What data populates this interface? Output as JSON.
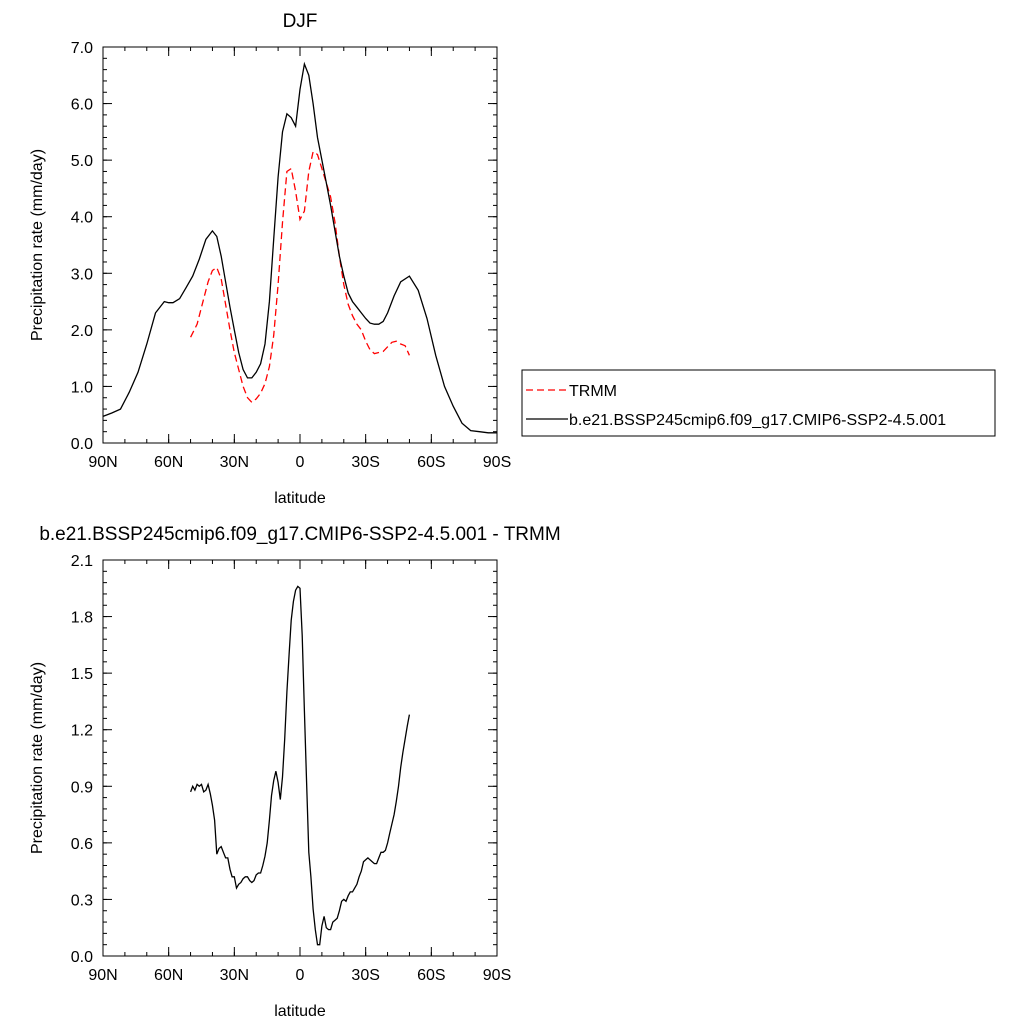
{
  "chart_data": [
    {
      "type": "line",
      "title": "DJF",
      "xlabel": "latitude",
      "ylabel": "Precipitation rate (mm/day)",
      "xlim": [
        90,
        -90
      ],
      "ylim": [
        0,
        7
      ],
      "x_tick_values": [
        90,
        60,
        30,
        0,
        -30,
        -60,
        -90
      ],
      "x_tick_labels": [
        "90N",
        "60N",
        "30N",
        "0",
        "30S",
        "60S",
        "90S"
      ],
      "y_tick_values": [
        0,
        1,
        2,
        3,
        4,
        5,
        6,
        7
      ],
      "y_tick_labels": [
        "0.0",
        "1.0",
        "2.0",
        "3.0",
        "4.0",
        "5.0",
        "6.0",
        "7.0"
      ],
      "grid": false,
      "legend_position": "right",
      "series": [
        {
          "name": "TRMM",
          "color": "#ff0000",
          "dash": "dashed",
          "x": [
            50,
            47,
            44,
            42,
            40,
            38,
            36,
            34,
            32,
            30,
            28,
            26,
            24,
            22,
            20,
            18,
            16,
            14,
            12,
            10,
            8,
            6,
            4,
            2,
            0,
            -2,
            -4,
            -6,
            -8,
            -10,
            -12,
            -14,
            -16,
            -18,
            -20,
            -22,
            -24,
            -26,
            -28,
            -30,
            -32,
            -34,
            -36,
            -38,
            -40,
            -42,
            -44,
            -46,
            -48,
            -50
          ],
          "y": [
            1.87,
            2.1,
            2.55,
            2.85,
            3.05,
            3.1,
            2.9,
            2.45,
            2.0,
            1.6,
            1.3,
            1.0,
            0.8,
            0.72,
            0.78,
            0.88,
            1.05,
            1.35,
            1.9,
            2.8,
            3.9,
            4.8,
            4.85,
            4.45,
            3.95,
            4.1,
            4.8,
            5.15,
            5.1,
            4.85,
            4.6,
            4.35,
            3.9,
            3.3,
            2.8,
            2.45,
            2.25,
            2.1,
            2.0,
            1.8,
            1.65,
            1.58,
            1.6,
            1.62,
            1.7,
            1.78,
            1.8,
            1.75,
            1.72,
            1.55
          ]
        },
        {
          "name": "b.e21.BSSP245cmip6.f09_g17.CMIP6-SSP2-4.5.001",
          "color": "#000000",
          "dash": "solid",
          "x": [
            90,
            86,
            82,
            78,
            74,
            70,
            66,
            62,
            60,
            58,
            55,
            52,
            49,
            46,
            43,
            40,
            38,
            36,
            34,
            32,
            30,
            28,
            26,
            24,
            22,
            20,
            18,
            16,
            14,
            12,
            10,
            8,
            6,
            4,
            2,
            0,
            -2,
            -4,
            -6,
            -8,
            -10,
            -12,
            -14,
            -16,
            -18,
            -20,
            -22,
            -24,
            -26,
            -28,
            -30,
            -32,
            -34,
            -36,
            -38,
            -40,
            -43,
            -46,
            -50,
            -54,
            -58,
            -62,
            -66,
            -70,
            -74,
            -78,
            -82,
            -86,
            -90
          ],
          "y": [
            0.47,
            0.53,
            0.6,
            0.9,
            1.25,
            1.75,
            2.3,
            2.5,
            2.48,
            2.48,
            2.55,
            2.75,
            2.95,
            3.25,
            3.6,
            3.75,
            3.65,
            3.3,
            2.85,
            2.4,
            2.0,
            1.6,
            1.3,
            1.15,
            1.15,
            1.25,
            1.4,
            1.75,
            2.5,
            3.6,
            4.7,
            5.5,
            5.82,
            5.75,
            5.6,
            6.25,
            6.7,
            6.5,
            6.0,
            5.4,
            5.0,
            4.6,
            4.2,
            3.75,
            3.3,
            2.95,
            2.65,
            2.5,
            2.4,
            2.3,
            2.2,
            2.12,
            2.1,
            2.1,
            2.15,
            2.3,
            2.6,
            2.85,
            2.95,
            2.7,
            2.2,
            1.55,
            1.0,
            0.65,
            0.35,
            0.22,
            0.2,
            0.18,
            0.18
          ]
        }
      ]
    },
    {
      "type": "line",
      "title": "b.e21.BSSP245cmip6.f09_g17.CMIP6-SSP2-4.5.001 - TRMM",
      "xlabel": "latitude",
      "ylabel": "Precipitation rate (mm/day)",
      "xlim": [
        90,
        -90
      ],
      "ylim": [
        0,
        2.1
      ],
      "x_tick_values": [
        90,
        60,
        30,
        0,
        -30,
        -60,
        -90
      ],
      "x_tick_labels": [
        "90N",
        "60N",
        "30N",
        "0",
        "30S",
        "60S",
        "90S"
      ],
      "y_tick_values": [
        0,
        0.3,
        0.6,
        0.9,
        1.2,
        1.5,
        1.8,
        2.1
      ],
      "y_tick_labels": [
        "0.0",
        "0.3",
        "0.6",
        "0.9",
        "1.2",
        "1.5",
        "1.8",
        "2.1"
      ],
      "grid": false,
      "series": [
        {
          "color": "#000000",
          "dash": "solid",
          "x": [
            50,
            49,
            48,
            47,
            46,
            45,
            44,
            43,
            42,
            41,
            40,
            39,
            38,
            37,
            36,
            35,
            34,
            33,
            32,
            31,
            30,
            29,
            28,
            27,
            26,
            25,
            24,
            23,
            22,
            21,
            20,
            19,
            18,
            17,
            16,
            15,
            14,
            13,
            12,
            11,
            10,
            9,
            8,
            7,
            6,
            5,
            4,
            3,
            2,
            1,
            0,
            -1,
            -2,
            -3,
            -4,
            -5,
            -6,
            -7,
            -8,
            -9,
            -10,
            -11,
            -12,
            -13,
            -14,
            -15,
            -16,
            -17,
            -18,
            -19,
            -20,
            -21,
            -22,
            -23,
            -24,
            -25,
            -26,
            -27,
            -28,
            -29,
            -30,
            -31,
            -32,
            -33,
            -34,
            -35,
            -36,
            -37,
            -38,
            -39,
            -40,
            -41,
            -42,
            -43,
            -44,
            -45,
            -46,
            -47,
            -48,
            -49,
            -50
          ],
          "y": [
            0.87,
            0.9,
            0.88,
            0.91,
            0.9,
            0.91,
            0.87,
            0.88,
            0.91,
            0.86,
            0.8,
            0.72,
            0.54,
            0.57,
            0.58,
            0.55,
            0.52,
            0.52,
            0.46,
            0.42,
            0.42,
            0.36,
            0.38,
            0.39,
            0.41,
            0.42,
            0.42,
            0.4,
            0.39,
            0.4,
            0.43,
            0.44,
            0.44,
            0.48,
            0.53,
            0.6,
            0.72,
            0.85,
            0.93,
            0.98,
            0.92,
            0.83,
            0.95,
            1.15,
            1.4,
            1.6,
            1.78,
            1.88,
            1.94,
            1.96,
            1.95,
            1.7,
            1.3,
            0.92,
            0.55,
            0.42,
            0.25,
            0.14,
            0.06,
            0.06,
            0.16,
            0.21,
            0.15,
            0.14,
            0.14,
            0.18,
            0.19,
            0.2,
            0.24,
            0.29,
            0.3,
            0.29,
            0.32,
            0.34,
            0.34,
            0.36,
            0.38,
            0.42,
            0.45,
            0.5,
            0.51,
            0.52,
            0.51,
            0.5,
            0.49,
            0.49,
            0.52,
            0.55,
            0.55,
            0.56,
            0.6,
            0.65,
            0.7,
            0.75,
            0.82,
            0.9,
            1.0,
            1.08,
            1.15,
            1.22,
            1.28
          ]
        }
      ]
    }
  ]
}
